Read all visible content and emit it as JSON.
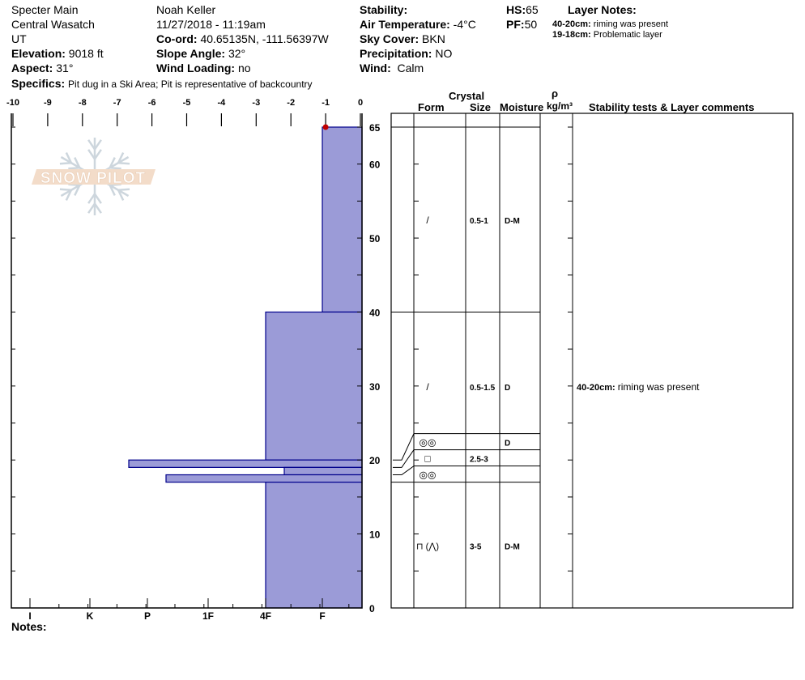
{
  "header": {
    "location": "Specter Main",
    "range": "Central Wasatch",
    "state": "UT",
    "elevation_label": "Elevation:",
    "elevation": "9018 ft",
    "aspect_label": "Aspect:",
    "aspect": "31°",
    "observer": "Noah Keller",
    "datetime": "11/27/2018 - 11:19am",
    "coord_label": "Co-ord:",
    "coord": "40.65135N, -111.56397W",
    "slope_label": "Slope Angle:",
    "slope": "32°",
    "wind_loading_label": "Wind Loading:",
    "wind_loading": "no",
    "stability_label": "Stability:",
    "stability": "",
    "air_temp_label": "Air Temperature:",
    "air_temp": "-4°C",
    "sky_label": "Sky Cover:",
    "sky": "BKN",
    "precip_label": "Precipitation:",
    "precip": "NO",
    "wind_label": "Wind:",
    "wind": "Calm",
    "hs_label": "HS:",
    "hs": "65",
    "pf_label": "PF:",
    "pf": "50",
    "layer_notes_title": "Layer Notes:",
    "layer_notes": [
      {
        "range": "40-20cm:",
        "text": "riming was present"
      },
      {
        "range": "19-18cm:",
        "text": "Problematic layer"
      }
    ],
    "specifics_label": "Specifics:",
    "specifics": "Pit dug in a Ski Area; Pit is representative of backcountry",
    "notes_label": "Notes:"
  },
  "logo": {
    "text": "SNOW PILOT",
    "colors": {
      "band": "#f2d9c4",
      "flake": "#c8d2da"
    }
  },
  "table_headers": {
    "crystal": "Crystal",
    "form": "Form",
    "size": "Size",
    "moisture": "Moisture",
    "density_symbol": "ρ",
    "density_unit": "kg/m³",
    "comments": "Stability tests & Layer comments"
  },
  "chart_data": {
    "type": "snow-profile",
    "temperature_axis": {
      "ticks": [
        -10,
        -9,
        -8,
        -7,
        -6,
        -5,
        -4,
        -3,
        -2,
        -1,
        0
      ],
      "range": [
        -10,
        0
      ]
    },
    "height_axis": {
      "ticks": [
        65,
        60,
        50,
        40,
        30,
        20,
        10,
        0
      ],
      "range": [
        0,
        65
      ],
      "unit": "cm"
    },
    "hardness_axis": {
      "ticks": [
        "I",
        "K",
        "P",
        "1F",
        "4F",
        "F"
      ]
    },
    "temperature_profile": [
      {
        "height": 65,
        "temp": -1
      }
    ],
    "layers": [
      {
        "top": 65,
        "bottom": 40,
        "hardness": "F",
        "form": "/",
        "size": "0.5-1",
        "moisture": "D-M",
        "comment": ""
      },
      {
        "top": 40,
        "bottom": 20,
        "hardness": "4F",
        "form": "/",
        "size": "0.5-1.5",
        "moisture": "D",
        "comment_range": "40-20cm:",
        "comment": "riming was present"
      },
      {
        "top": 20,
        "bottom": 19,
        "hardness": "P+",
        "form": "◎◎",
        "size": "",
        "moisture": "D",
        "comment": ""
      },
      {
        "top": 19,
        "bottom": 18,
        "hardness": "4F-",
        "form": "□",
        "size": "2.5-3",
        "moisture": "",
        "comment": ""
      },
      {
        "top": 18,
        "bottom": 17,
        "hardness": "P-",
        "form": "◎◎",
        "size": "",
        "moisture": "",
        "comment": ""
      },
      {
        "top": 17,
        "bottom": 0,
        "hardness": "4F",
        "form": "⊓ (⋀)",
        "size": "3-5",
        "moisture": "D-M",
        "comment": ""
      }
    ],
    "colors": {
      "hardness_fill": "#9b9bd7",
      "hardness_stroke": "#00008b",
      "temp_point": "#c00000"
    }
  }
}
